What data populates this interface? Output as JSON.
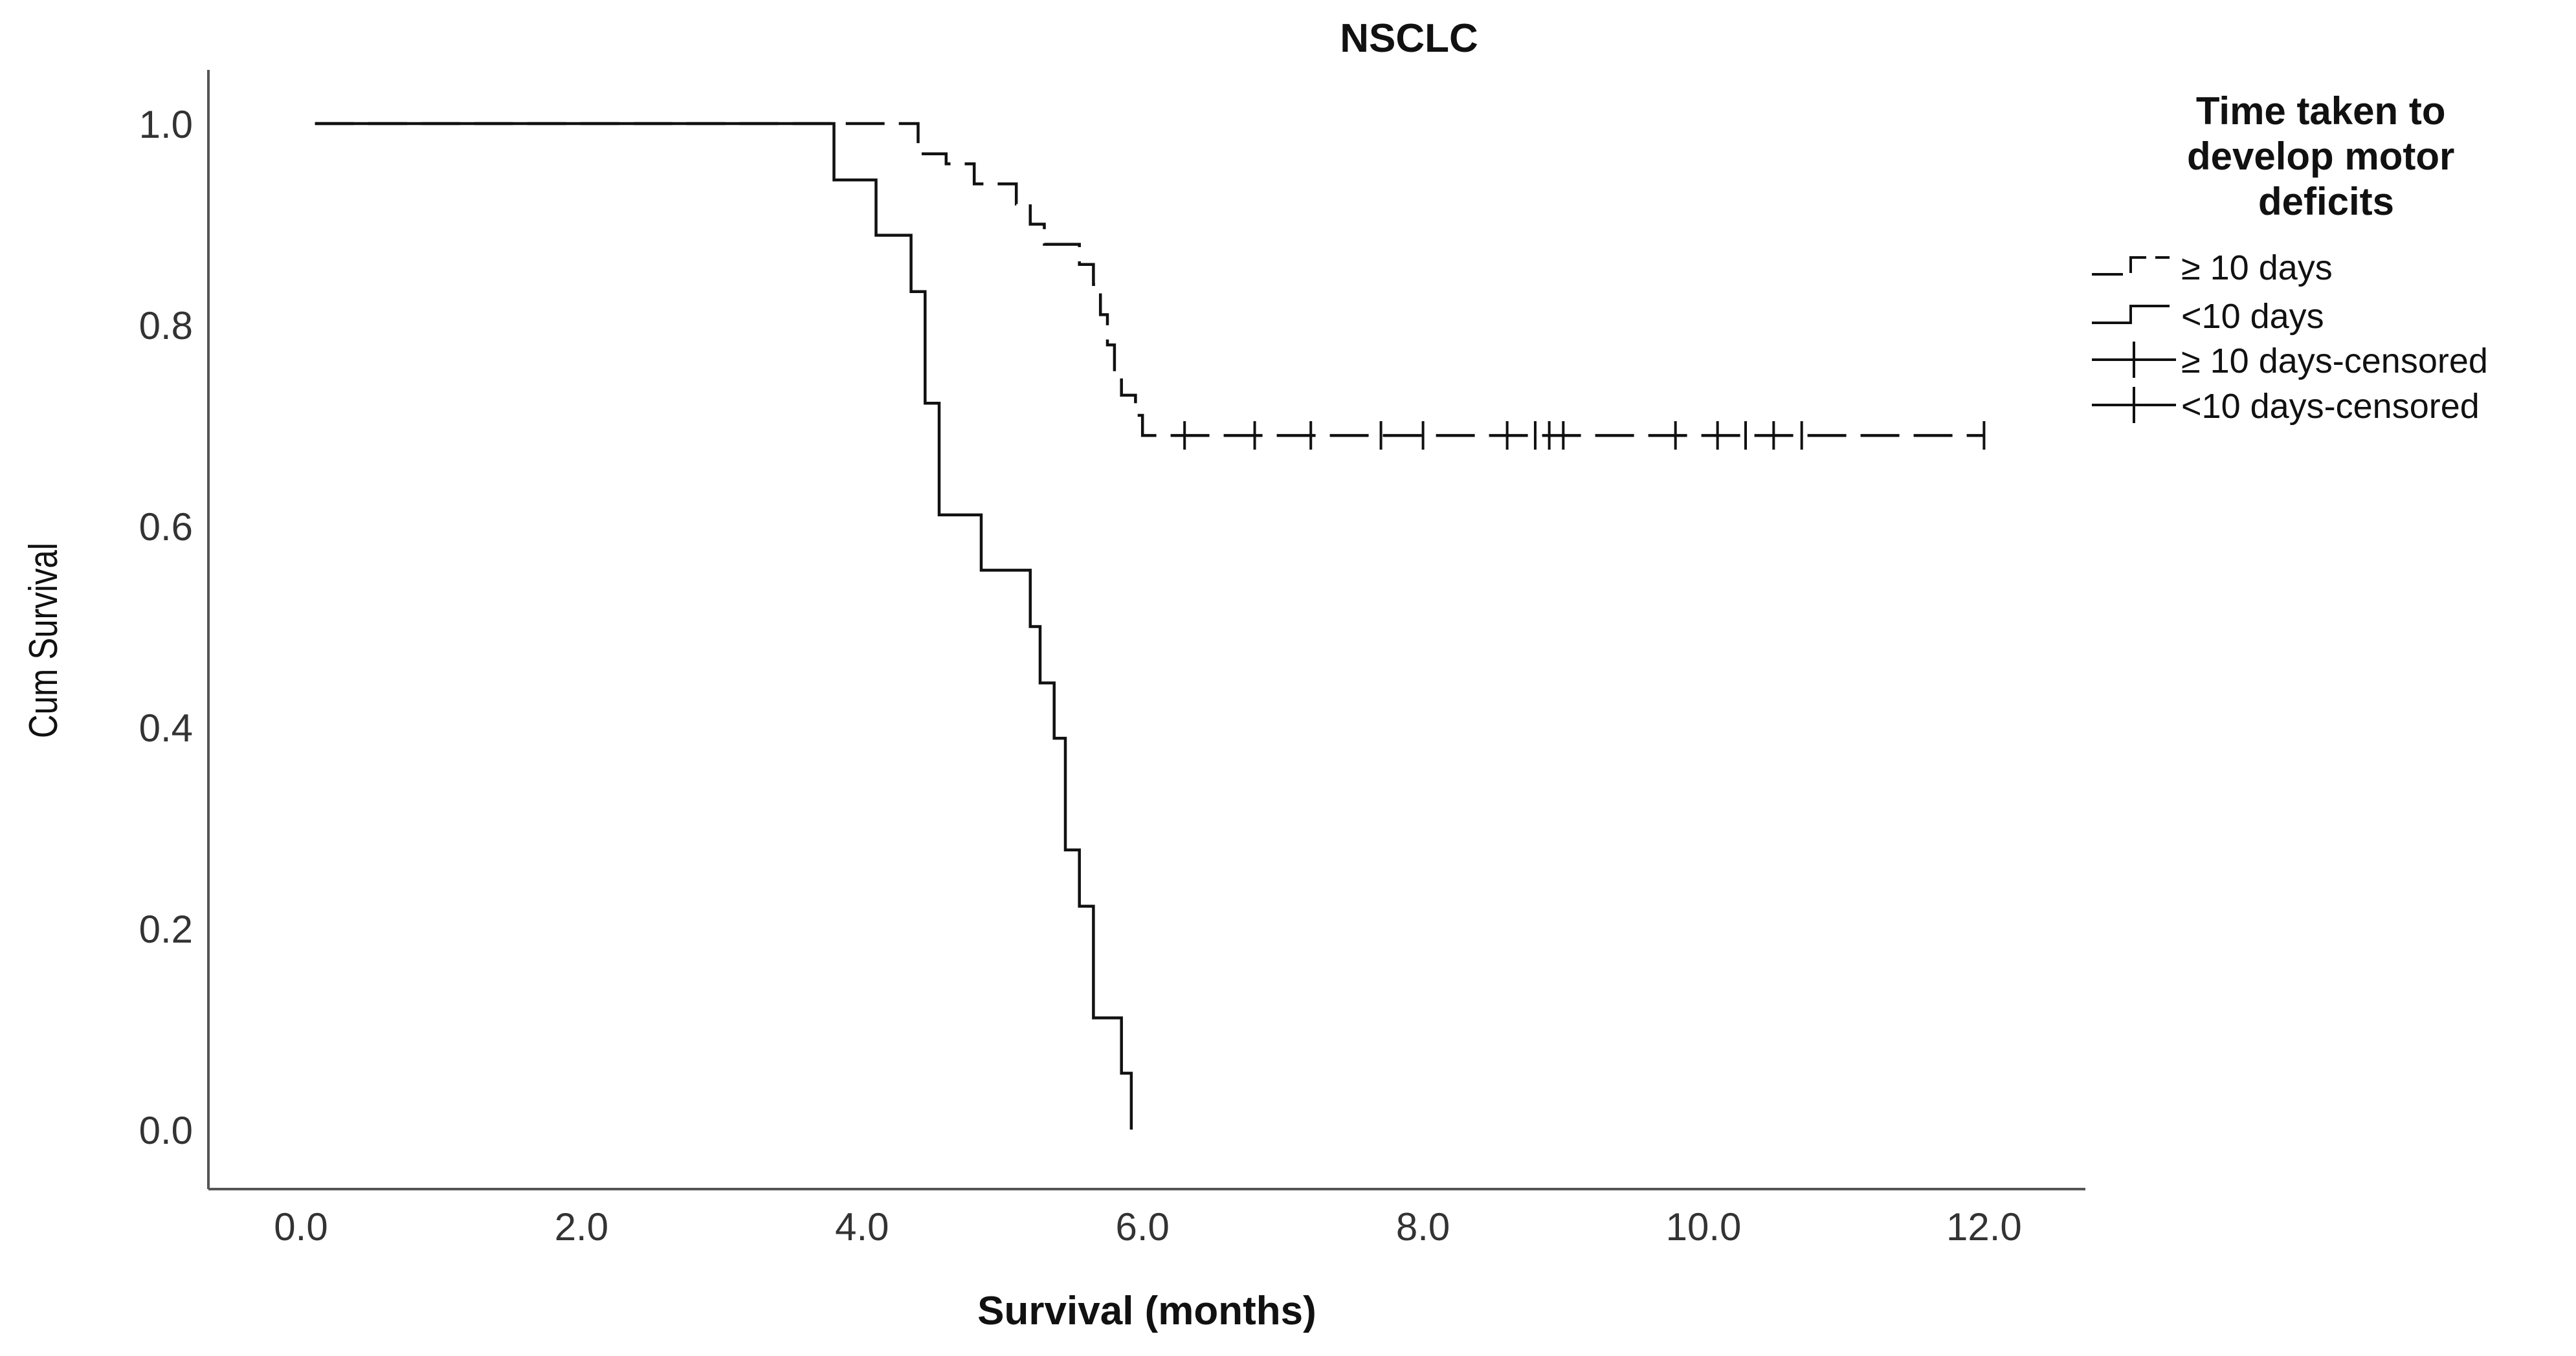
{
  "chart_data": {
    "type": "line",
    "subtype": "kaplan-meier",
    "title": "NSCLC",
    "xlabel": "Survival (months)",
    "ylabel": "Cum Survival",
    "xlim": [
      0,
      12.2
    ],
    "ylim": [
      0,
      1.0
    ],
    "x_ticks": [
      "0.0",
      "2.0",
      "4.0",
      "6.0",
      "8.0",
      "10.0",
      "12.0"
    ],
    "y_ticks": [
      "0.0",
      "0.2",
      "0.4",
      "0.6",
      "0.8",
      "1.0"
    ],
    "grid": false,
    "legend_title": "Time taken to develop motor deficits",
    "legend_position": "top-right",
    "legend_entries": [
      "≥ 10 days",
      "<10 days",
      "≥ 10 days-censored",
      "<10 days-censored"
    ],
    "series": [
      {
        "name": "≥ 10 days",
        "line_style": "dashed",
        "steps": [
          [
            0.1,
            1.0
          ],
          [
            4.4,
            0.97
          ],
          [
            4.6,
            0.96
          ],
          [
            4.8,
            0.94
          ],
          [
            5.1,
            0.92
          ],
          [
            5.2,
            0.9
          ],
          [
            5.3,
            0.88
          ],
          [
            5.55,
            0.86
          ],
          [
            5.65,
            0.84
          ],
          [
            5.7,
            0.81
          ],
          [
            5.75,
            0.78
          ],
          [
            5.8,
            0.75
          ],
          [
            5.85,
            0.73
          ],
          [
            5.95,
            0.71
          ],
          [
            6.0,
            0.69
          ]
        ],
        "end_x": 12.0,
        "censored_x": [
          6.3,
          6.8,
          7.2,
          7.7,
          8.0,
          8.6,
          8.8,
          8.9,
          9.0,
          9.8,
          10.1,
          10.3,
          10.5,
          10.7,
          12.0
        ]
      },
      {
        "name": "<10 days",
        "line_style": "solid",
        "steps": [
          [
            0.1,
            1.0
          ],
          [
            3.8,
            0.944
          ],
          [
            4.1,
            0.889
          ],
          [
            4.35,
            0.833
          ],
          [
            4.45,
            0.722
          ],
          [
            4.55,
            0.611
          ],
          [
            4.85,
            0.556
          ],
          [
            5.2,
            0.5
          ],
          [
            5.27,
            0.444
          ],
          [
            5.37,
            0.389
          ],
          [
            5.45,
            0.278
          ],
          [
            5.55,
            0.222
          ],
          [
            5.65,
            0.111
          ],
          [
            5.85,
            0.056
          ],
          [
            5.92,
            0.0
          ]
        ],
        "end_x": 5.92,
        "censored_x": []
      }
    ]
  }
}
